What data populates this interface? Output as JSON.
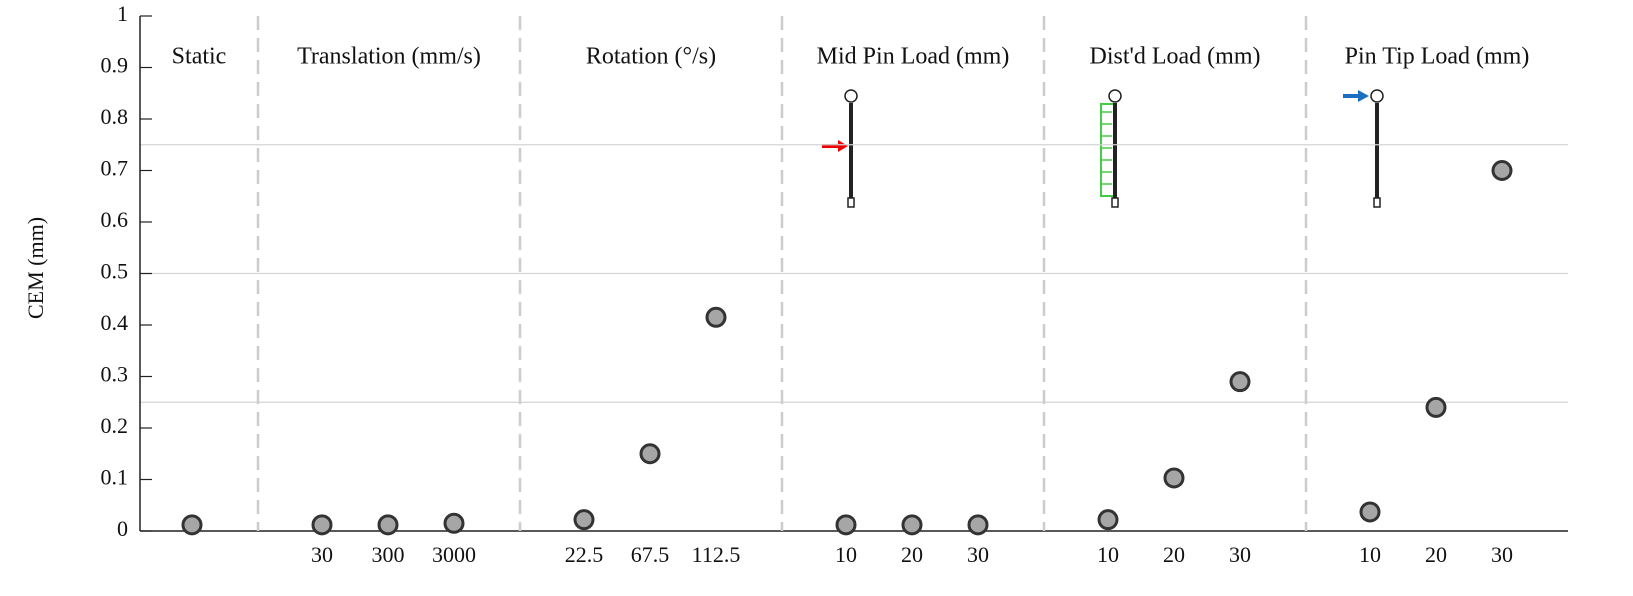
{
  "chart_data": {
    "type": "scatter",
    "ylabel": "CEM  (mm)",
    "ylim": [
      0,
      1
    ],
    "yticks": [
      0,
      0.1,
      0.2,
      0.3,
      0.4,
      0.5,
      0.6,
      0.7,
      0.8,
      0.9,
      1
    ],
    "gridlines": [
      0.25,
      0.5,
      0.75
    ],
    "color": "#a6a6a6",
    "groups": [
      {
        "name": "Static",
        "categories": [
          null
        ],
        "values": [
          0.012
        ]
      },
      {
        "name": "Translation (mm/s)",
        "categories": [
          "30",
          "300",
          "3000"
        ],
        "values": [
          0.012,
          0.012,
          0.015
        ]
      },
      {
        "name": "Rotation (°/s)",
        "categories": [
          "22.5",
          "67.5",
          "112.5"
        ],
        "values": [
          0.022,
          0.15,
          0.415
        ]
      },
      {
        "name": "Mid Pin Load (mm)",
        "categories": [
          "10",
          "20",
          "30"
        ],
        "values": [
          0.012,
          0.012,
          0.012
        ]
      },
      {
        "name": "Dist'd Load (mm)",
        "categories": [
          "10",
          "20",
          "30"
        ],
        "values": [
          0.022,
          0.103,
          0.29
        ]
      },
      {
        "name": "Pin Tip Load (mm)",
        "categories": [
          "10",
          "20",
          "30"
        ],
        "values": [
          0.037,
          0.24,
          0.7
        ]
      }
    ]
  }
}
